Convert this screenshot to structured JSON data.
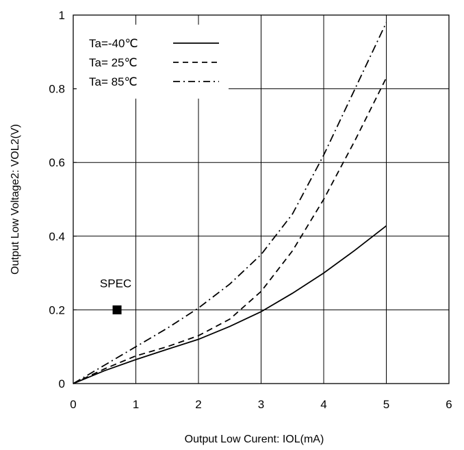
{
  "chart_data": {
    "type": "line",
    "title": "",
    "xlabel": "Output Low Curent: IOL(mA)",
    "ylabel": "Output Low Voltage2: VOL2(V)",
    "xlim": [
      0,
      6
    ],
    "ylim": [
      0,
      1
    ],
    "xticks": [
      "0",
      "1",
      "2",
      "3",
      "4",
      "5",
      "6"
    ],
    "yticks": [
      "0",
      "0.2",
      "0.4",
      "0.6",
      "0.8",
      "1"
    ],
    "grid": true,
    "legend_position": "top-left",
    "series": [
      {
        "name": "Ta=-40℃",
        "style": "solid",
        "x": [
          0,
          0.5,
          1,
          1.5,
          2,
          2.5,
          3,
          3.5,
          4,
          4.5,
          5
        ],
        "y": [
          0,
          0.035,
          0.065,
          0.093,
          0.12,
          0.155,
          0.195,
          0.245,
          0.3,
          0.362,
          0.428
        ]
      },
      {
        "name": "Ta= 25℃",
        "style": "dashed",
        "x": [
          0,
          0.5,
          1,
          1.5,
          2,
          2.5,
          3,
          3.5,
          4,
          4.5,
          5
        ],
        "y": [
          0,
          0.04,
          0.075,
          0.1,
          0.13,
          0.175,
          0.25,
          0.36,
          0.5,
          0.66,
          0.83
        ]
      },
      {
        "name": "Ta= 85℃",
        "style": "dashdot",
        "x": [
          0,
          0.5,
          1,
          1.5,
          2,
          2.5,
          3,
          3.5,
          4,
          4.5,
          5
        ],
        "y": [
          0,
          0.05,
          0.1,
          0.15,
          0.205,
          0.27,
          0.35,
          0.46,
          0.62,
          0.8,
          0.98
        ]
      }
    ],
    "annotations": [
      {
        "label": "SPEC",
        "x": 0.7,
        "y": 0.2,
        "marker": "square"
      }
    ]
  }
}
